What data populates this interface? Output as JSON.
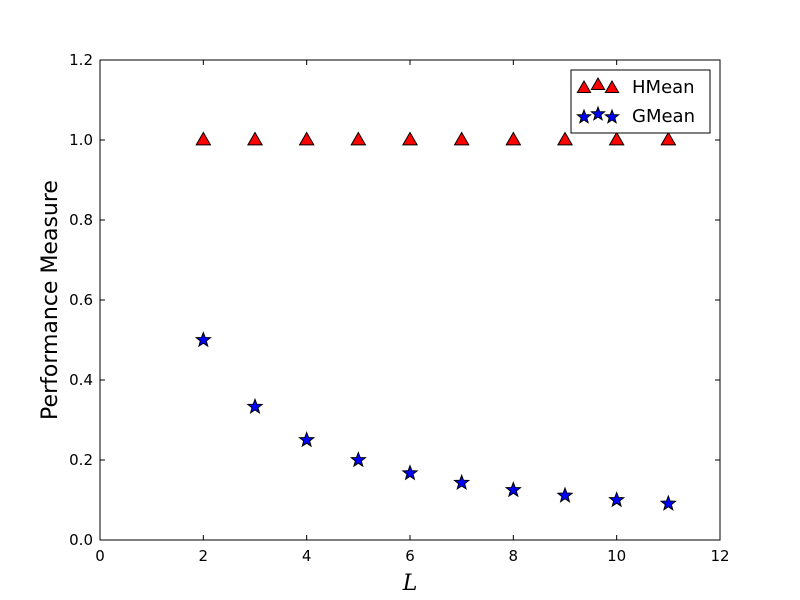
{
  "chart_data": {
    "type": "scatter",
    "title": "",
    "xlabel": "L",
    "ylabel": "Performance Measure",
    "xlim": [
      0,
      12
    ],
    "ylim": [
      0.0,
      1.2
    ],
    "xticks": [
      "0",
      "2",
      "4",
      "6",
      "8",
      "10",
      "12"
    ],
    "yticks": [
      "0.0",
      "0.2",
      "0.4",
      "0.6",
      "0.8",
      "1.0",
      "1.2"
    ],
    "grid": false,
    "legend_position": "top-right",
    "series": [
      {
        "name": "HMean",
        "marker": "triangle",
        "color": "#ff0000",
        "x": [
          2,
          3,
          4,
          5,
          6,
          7,
          8,
          9,
          10,
          11
        ],
        "y": [
          1.0,
          1.0,
          1.0,
          1.0,
          1.0,
          1.0,
          1.0,
          1.0,
          1.0,
          1.0
        ]
      },
      {
        "name": "GMean",
        "marker": "star",
        "color": "#0000ff",
        "x": [
          2,
          3,
          4,
          5,
          6,
          7,
          8,
          9,
          10,
          11
        ],
        "y": [
          0.5,
          0.333,
          0.25,
          0.2,
          0.167,
          0.143,
          0.125,
          0.111,
          0.1,
          0.091
        ]
      }
    ]
  }
}
